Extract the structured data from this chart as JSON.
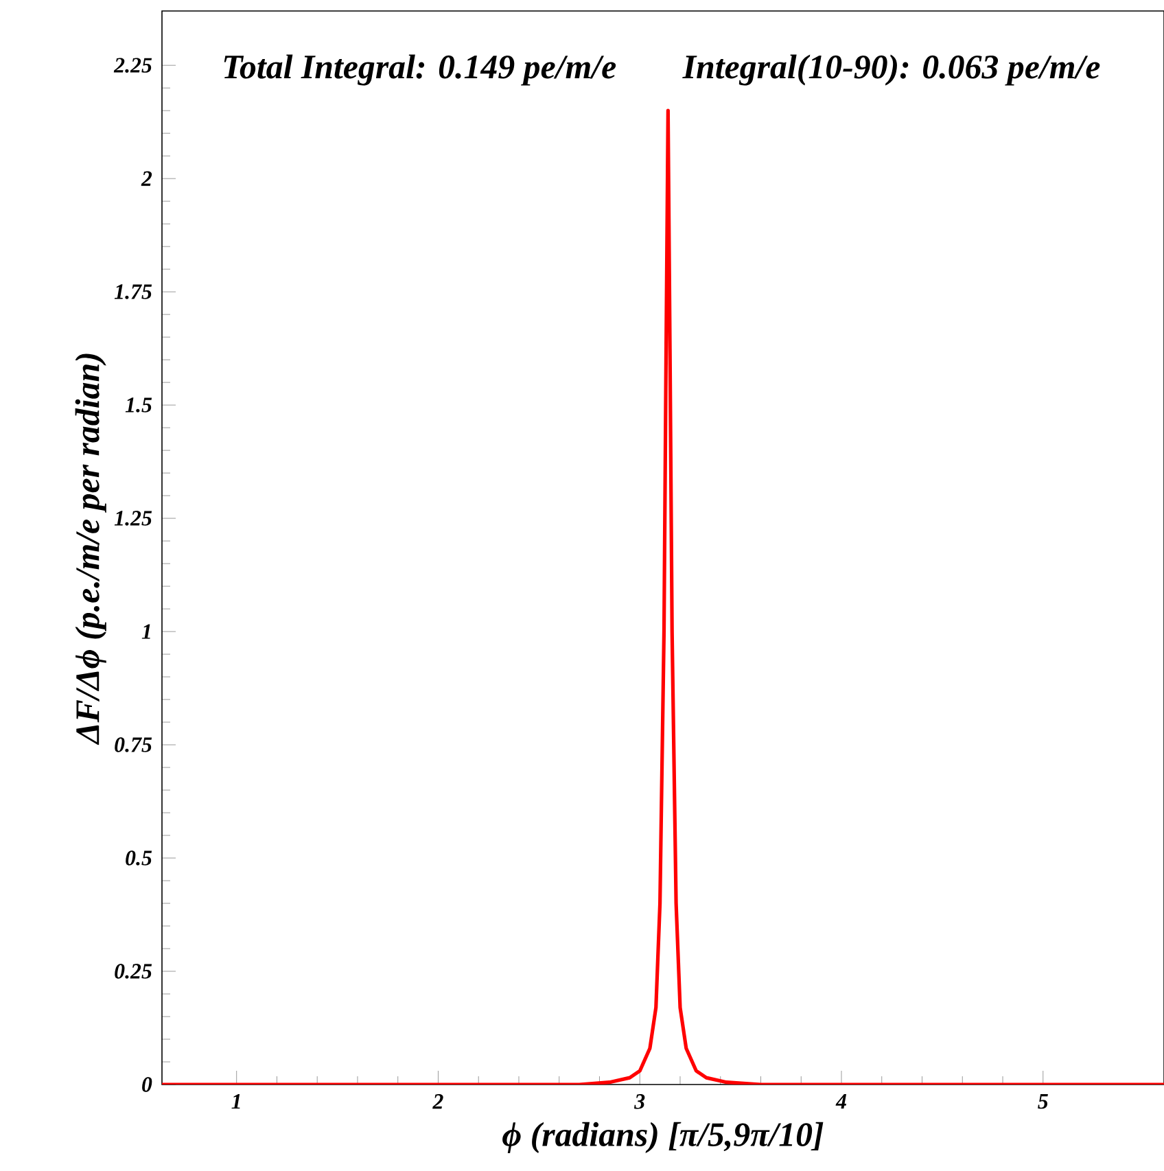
{
  "chart_data": {
    "type": "line",
    "xlabel": "ϕ (radians) [π/5,9π/10]",
    "ylabel": "ΔF/Δϕ (p.e./m/e per radian)",
    "annotations": [
      "Total Integral: 0.149 pe/m/e",
      "Integral(10-90): 0.063 pe/m/e"
    ],
    "series": [
      {
        "color": "#ff0000",
        "x": [
          0.63,
          2.7,
          2.85,
          2.95,
          3.0,
          3.05,
          3.08,
          3.1,
          3.12,
          3.13,
          3.14,
          3.15,
          3.16,
          3.18,
          3.2,
          3.23,
          3.28,
          3.33,
          3.43,
          3.6,
          5.6
        ],
        "values": [
          0,
          0,
          0.005,
          0.015,
          0.03,
          0.08,
          0.17,
          0.4,
          1.0,
          1.6,
          2.15,
          1.6,
          1.0,
          0.4,
          0.17,
          0.08,
          0.03,
          0.015,
          0.005,
          0,
          0
        ]
      }
    ],
    "xlim": [
      0.63,
      5.6
    ],
    "ylim": [
      0,
      2.37
    ],
    "xticks": [
      1,
      2,
      3,
      4,
      5
    ],
    "yticks": [
      0,
      0.25,
      0.5,
      0.75,
      1,
      1.25,
      1.5,
      1.75,
      2,
      2.25
    ],
    "grid": false,
    "marker": "none",
    "line_style": "solid"
  }
}
